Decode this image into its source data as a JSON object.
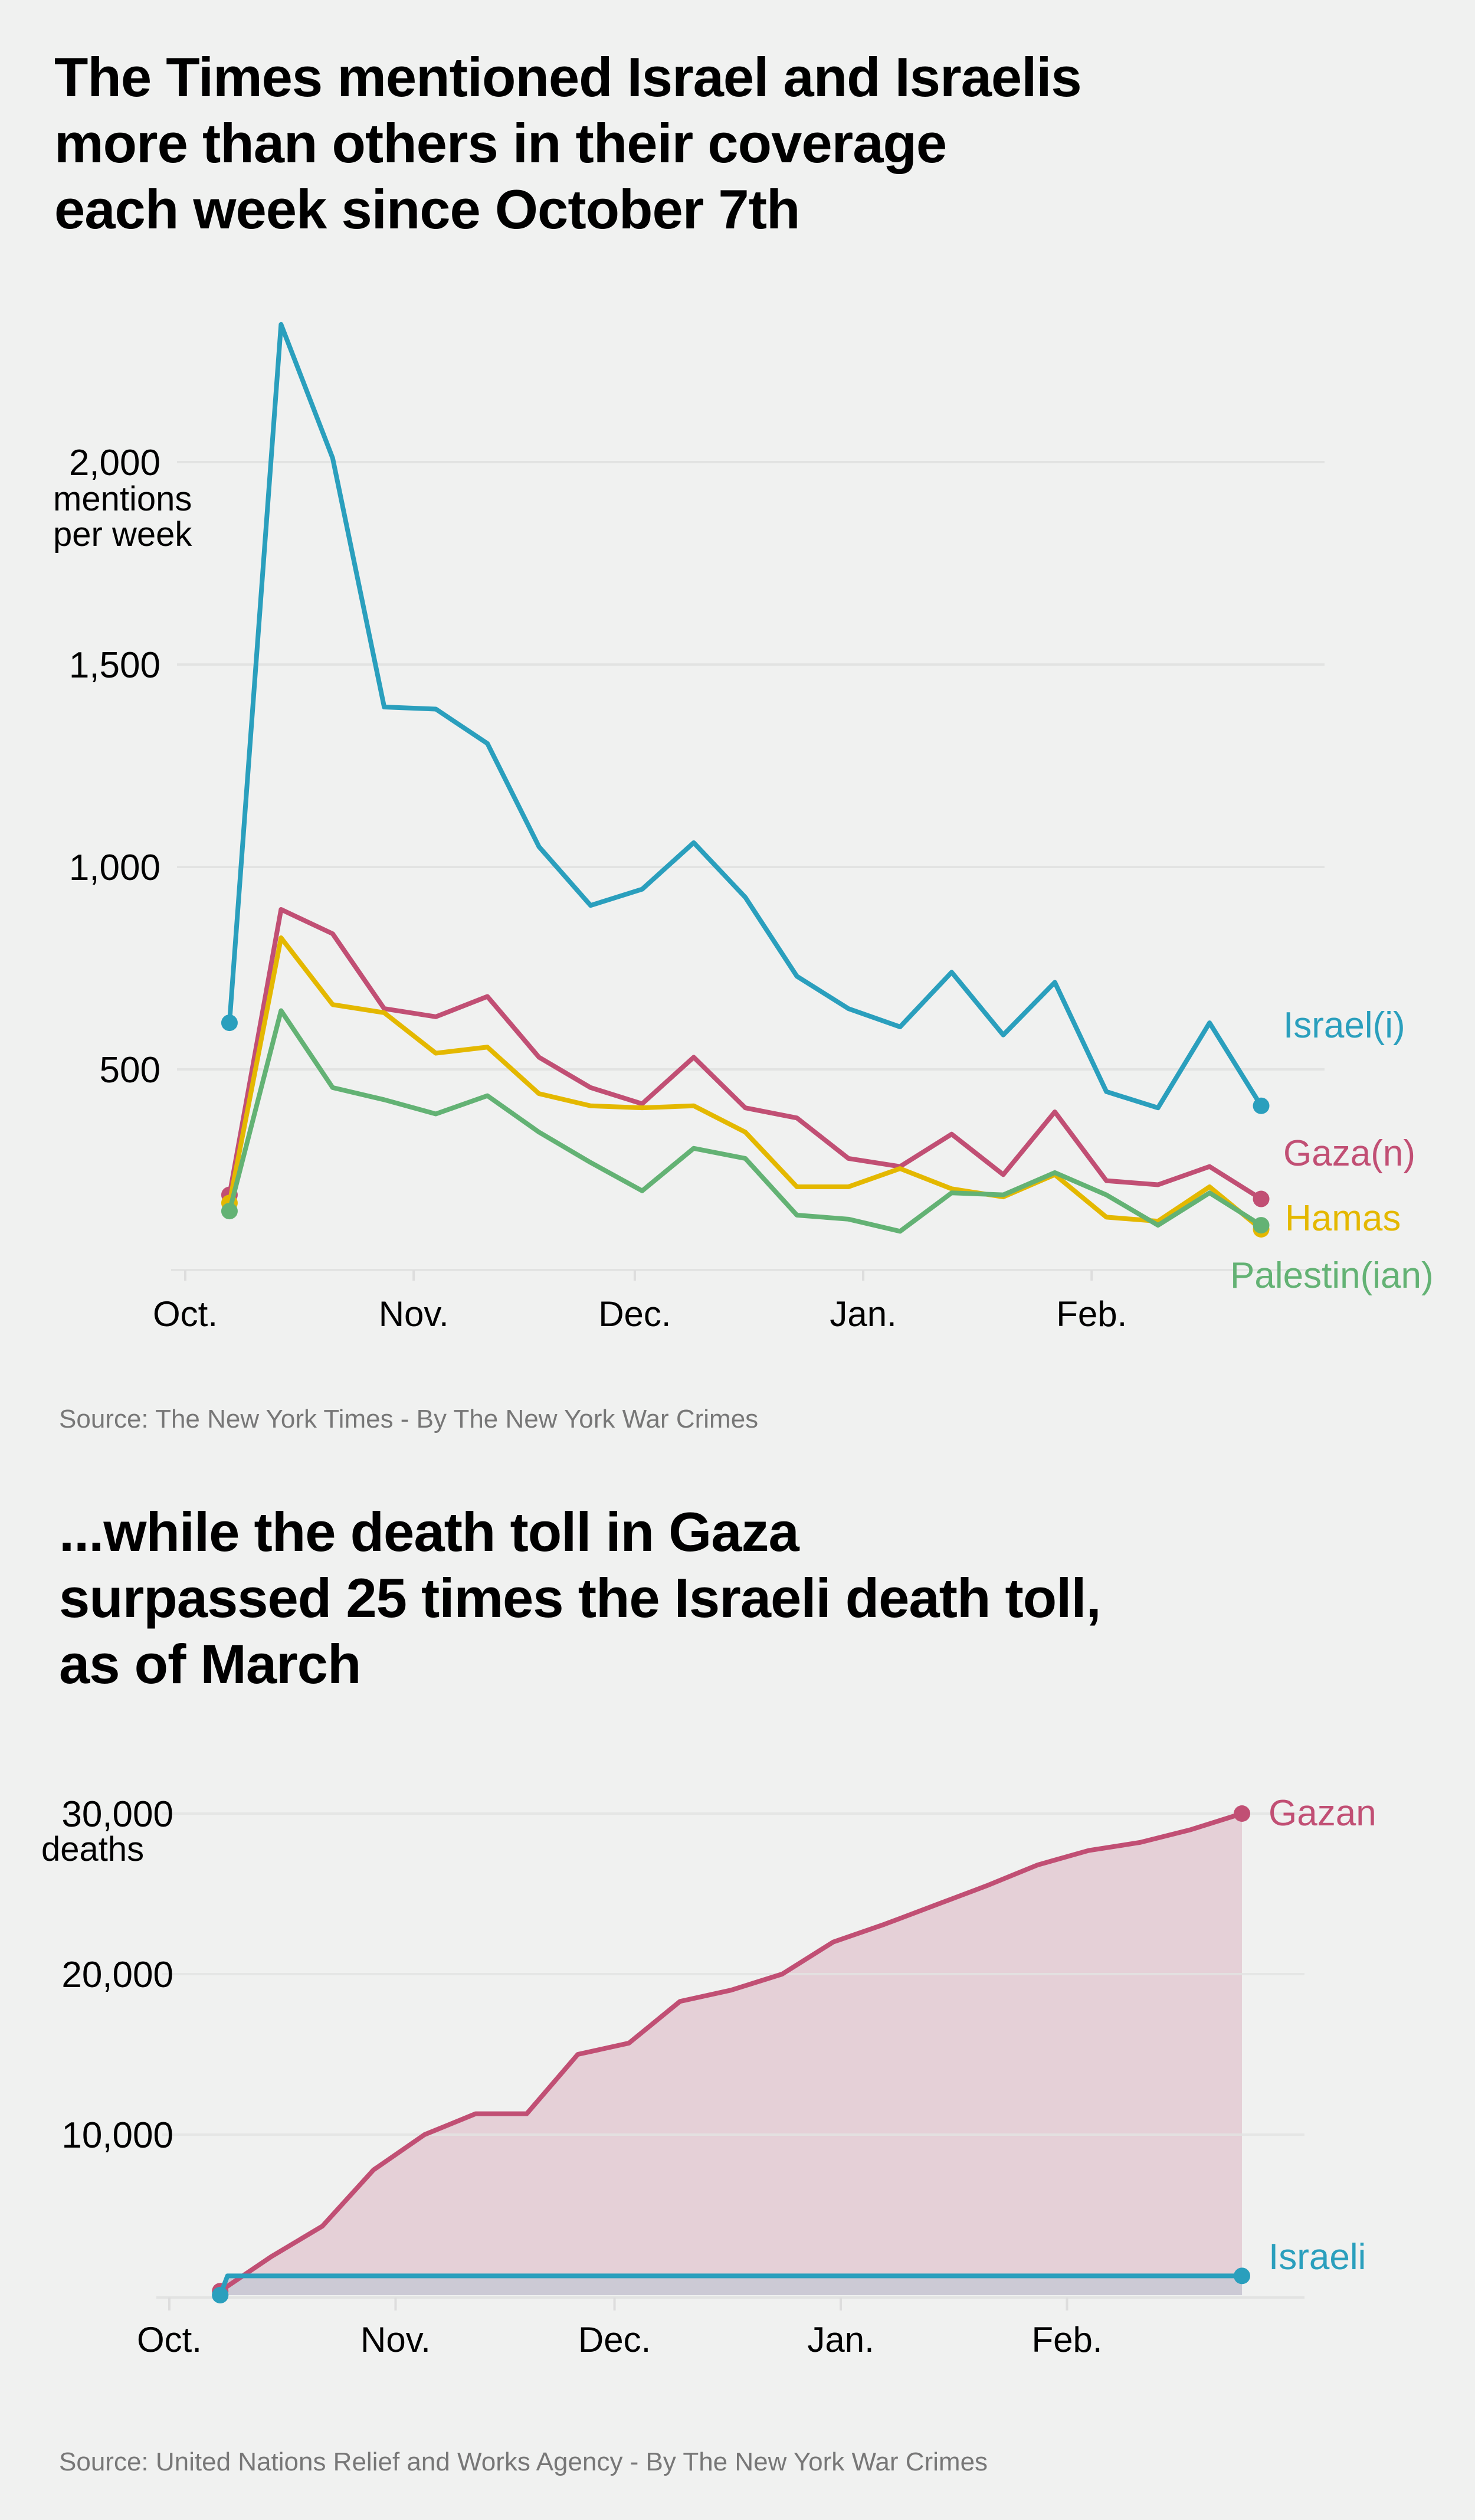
{
  "colors": {
    "background": "#f0f1f0",
    "israel": "#2a9fbd",
    "gaza": "#c14f74",
    "hamas": "#e4b800",
    "palestinian": "#63b274",
    "gazan_fill": "#e5d0d7",
    "israeli_fill": "#cccad5",
    "grid": "#e2e3e2"
  },
  "sections": [
    {
      "title_lines": [
        "The Times mentioned Israel and Israelis",
        "more than others in their coverage",
        "each week since October 7th"
      ],
      "source": "Source: The New York Times - By The New York War Crimes"
    },
    {
      "title_lines": [
        "...while the death toll in Gaza",
        "surpassed 25 times the Israeli death toll,",
        "as of March"
      ],
      "source": "Source: United Nations Relief and Works Agency - By The New York War Crimes"
    }
  ],
  "chart_data": [
    {
      "type": "line",
      "title": "The Times mentioned Israel and Israelis more than others in their coverage each week since October 7th",
      "ylabel": "mentions per week",
      "ylim": [
        0,
        2400
      ],
      "yticks": [
        500,
        1000,
        1500,
        2000
      ],
      "ytick_labels": [
        "500",
        "1,000",
        "1,500",
        "2,000"
      ],
      "xticks": [
        "2023-10-01",
        "2023-11-01",
        "2023-12-01",
        "2024-01-01",
        "2024-02-01"
      ],
      "xtick_labels": [
        "Oct.",
        "Nov.",
        "Dec.",
        "Jan.",
        "Feb."
      ],
      "grid": true,
      "legend": "direct labels at line ends",
      "x": [
        "2023-10-07",
        "2023-10-14",
        "2023-10-21",
        "2023-10-28",
        "2023-11-04",
        "2023-11-11",
        "2023-11-18",
        "2023-11-25",
        "2023-12-02",
        "2023-12-09",
        "2023-12-16",
        "2023-12-23",
        "2023-12-30",
        "2024-01-06",
        "2024-01-13",
        "2024-01-20",
        "2024-01-27",
        "2024-02-03",
        "2024-02-10",
        "2024-02-17",
        "2024-02-24"
      ],
      "series": [
        {
          "name": "Israel(i)",
          "color_key": "israel",
          "values": [
            615,
            2340,
            2010,
            1395,
            1390,
            1305,
            1050,
            905,
            945,
            1060,
            925,
            730,
            650,
            605,
            740,
            585,
            715,
            445,
            405,
            615,
            410
          ]
        },
        {
          "name": "Gaza(n)",
          "color_key": "gaza",
          "values": [
            190,
            895,
            835,
            650,
            630,
            680,
            530,
            455,
            415,
            530,
            405,
            380,
            280,
            260,
            340,
            240,
            395,
            225,
            215,
            260,
            180
          ]
        },
        {
          "name": "Hamas",
          "color_key": "hamas",
          "values": [
            170,
            825,
            660,
            640,
            540,
            555,
            440,
            410,
            405,
            410,
            345,
            210,
            210,
            255,
            205,
            185,
            240,
            135,
            125,
            210,
            105
          ]
        },
        {
          "name": "Palestin(ian)",
          "color_key": "palestinian",
          "values": [
            150,
            645,
            455,
            425,
            390,
            435,
            345,
            270,
            200,
            305,
            280,
            140,
            130,
            100,
            195,
            190,
            245,
            190,
            115,
            195,
            115
          ]
        }
      ]
    },
    {
      "type": "area",
      "title": "...while the death toll in Gaza surpassed 25 times the Israeli death toll, as of March",
      "ylabel": "deaths",
      "ylim": [
        0,
        30000
      ],
      "yticks": [
        10000,
        20000,
        30000
      ],
      "ytick_labels": [
        "10,000",
        "20,000",
        "30,000"
      ],
      "xticks": [
        "2023-10-01",
        "2023-11-01",
        "2023-12-01",
        "2024-01-01",
        "2024-02-01"
      ],
      "xtick_labels": [
        "Oct.",
        "Nov.",
        "Dec.",
        "Jan.",
        "Feb."
      ],
      "grid": true,
      "legend": "direct labels at line ends",
      "series": [
        {
          "name": "Gazan",
          "color_key": "gaza",
          "fill_key": "gazan_fill",
          "x": [
            "2023-10-07",
            "2023-10-14",
            "2023-10-21",
            "2023-10-28",
            "2023-11-04",
            "2023-11-11",
            "2023-11-18",
            "2023-11-25",
            "2023-12-02",
            "2023-12-09",
            "2023-12-16",
            "2023-12-23",
            "2023-12-30",
            "2024-01-06",
            "2024-01-13",
            "2024-01-20",
            "2024-01-27",
            "2024-02-03",
            "2024-02-10",
            "2024-02-17",
            "2024-02-24"
          ],
          "values": [
            250,
            2400,
            4300,
            7800,
            10000,
            11300,
            11300,
            15000,
            15700,
            18300,
            19000,
            20000,
            22000,
            23100,
            24300,
            25500,
            26800,
            27700,
            28200,
            29000,
            30000
          ]
        },
        {
          "name": "Israeli",
          "color_key": "israel",
          "fill_key": "israeli_fill",
          "x": [
            "2023-10-07",
            "2023-10-08",
            "2024-02-24"
          ],
          "values": [
            0,
            1200,
            1200
          ]
        }
      ]
    }
  ]
}
